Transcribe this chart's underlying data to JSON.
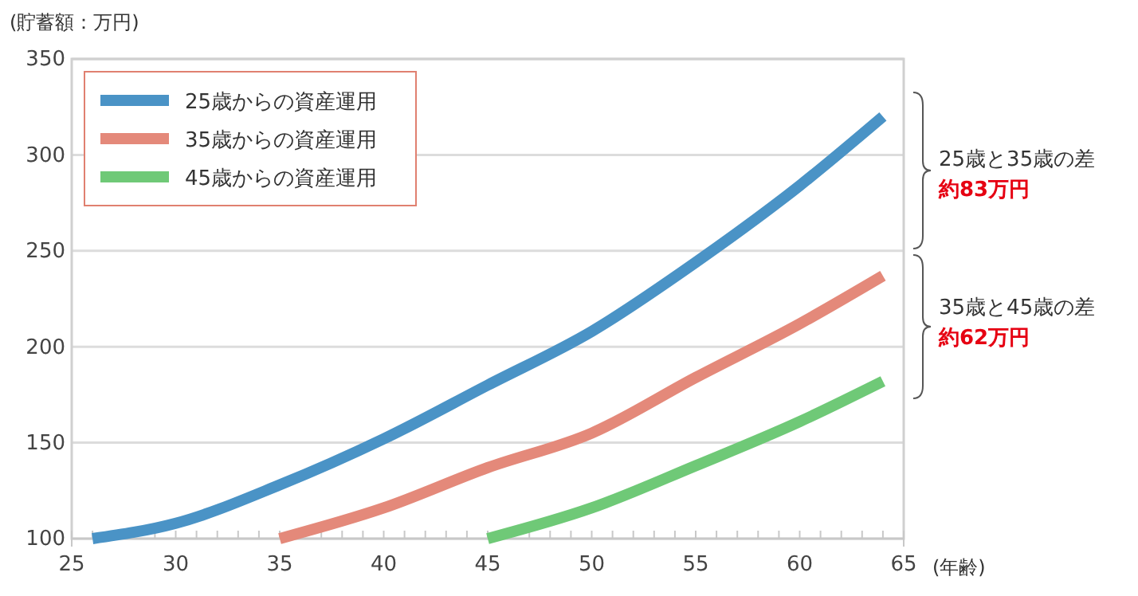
{
  "chart_data": {
    "type": "line",
    "ylabel": "(貯蓄額：万円)",
    "xlabel": "(年齢)",
    "xlim": [
      25,
      65
    ],
    "ylim": [
      100,
      350
    ],
    "xticks": [
      25,
      {
        "value": 26,
        "label": null
      },
      {
        "value": 27,
        "label": null
      },
      {
        "value": 28,
        "label": null
      },
      {
        "value": 29,
        "label": null
      },
      30,
      {
        "value": 31,
        "label": null
      },
      {
        "value": 32,
        "label": null
      },
      {
        "value": 33,
        "label": null
      },
      {
        "value": 34,
        "label": null
      },
      35,
      {
        "value": 36,
        "label": null
      },
      {
        "value": 37,
        "label": null
      },
      {
        "value": 38,
        "label": null
      },
      {
        "value": 39,
        "label": null
      },
      40,
      {
        "value": 41,
        "label": null
      },
      {
        "value": 42,
        "label": null
      },
      {
        "value": 43,
        "label": null
      },
      {
        "value": 44,
        "label": null
      },
      45,
      {
        "value": 46,
        "label": null
      },
      {
        "value": 47,
        "label": null
      },
      {
        "value": 48,
        "label": null
      },
      {
        "value": 49,
        "label": null
      },
      50,
      {
        "value": 51,
        "label": null
      },
      {
        "value": 52,
        "label": null
      },
      {
        "value": 53,
        "label": null
      },
      {
        "value": 54,
        "label": null
      },
      55,
      {
        "value": 56,
        "label": null
      },
      {
        "value": 57,
        "label": null
      },
      {
        "value": 58,
        "label": null
      },
      {
        "value": 59,
        "label": null
      },
      60,
      {
        "value": 61,
        "label": null
      },
      {
        "value": 62,
        "label": null
      },
      {
        "value": 63,
        "label": null
      },
      {
        "value": 64,
        "label": null
      },
      65
    ],
    "yticks": [
      100,
      150,
      200,
      250,
      300,
      350
    ],
    "grid": "y",
    "legend": "top left",
    "marker": "none",
    "line_style": "solid",
    "series": [
      {
        "name": "25歳からの資産運用",
        "color": "#4a93c6",
        "x": [
          26,
          30,
          35,
          40,
          45,
          50,
          55,
          60,
          64
        ],
        "values": [
          100,
          108,
          128,
          152,
          180,
          208,
          244,
          284,
          320
        ]
      },
      {
        "name": "35歳からの資産運用",
        "color": "#e4897a",
        "x": [
          35,
          40,
          45,
          50,
          55,
          60,
          64
        ],
        "values": [
          100,
          116,
          137,
          155,
          184,
          212,
          237
        ]
      },
      {
        "name": "45歳からの資産運用",
        "color": "#6fc977",
        "x": [
          45,
          50,
          55,
          60,
          64
        ],
        "values": [
          100,
          116,
          138,
          161,
          182
        ]
      }
    ],
    "annotations": [
      "25歳と35歳の差",
      "約83万円",
      "35歳と45歳の差",
      "約62万円"
    ]
  }
}
